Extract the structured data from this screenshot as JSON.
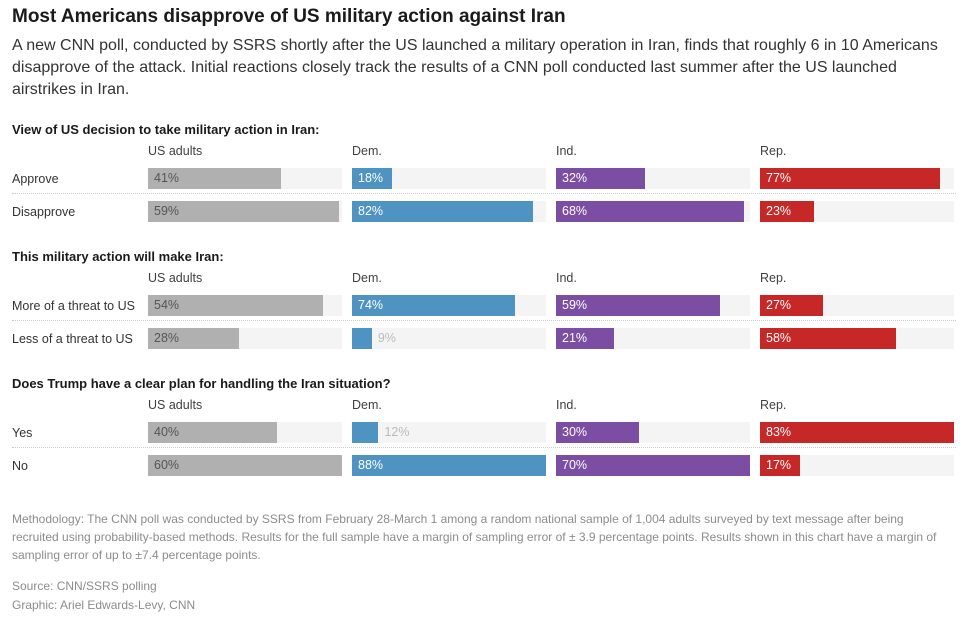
{
  "title": "Most Americans disapprove of US military action against Iran",
  "subtitle": "A new CNN poll, conducted by SSRS shortly after the US launched a military operation in Iran, finds that roughly 6 in 10 Americans disapprove of the attack. Initial reactions closely track the results of a CNN poll conducted last summer after the US launched airstrikes in Iran.",
  "methodology": "Methodology: The CNN poll was conducted by SSRS from February 28-March 1 among a random national sample of 1,004 adults surveyed by text message after being recruited using probability-based methods. Results for the full sample have a margin of sampling error of ± 3.9 percentage points. Results shown in this chart have a margin of sampling error of up to ±7.4 percentage points.",
  "source": "Source: CNN/SSRS polling",
  "graphic": "Graphic: Ariel Edwards-Levy, CNN",
  "chart_data": {
    "type": "bar",
    "groups": [
      "US adults",
      "Dem.",
      "Ind.",
      "Rep."
    ],
    "colors": [
      "#b0b0b0",
      "#4f93c3",
      "#7b4ea3",
      "#c62727"
    ],
    "unit": "%",
    "questions": [
      {
        "title": "View of US decision to take military action in Iran:",
        "rows": [
          {
            "label": "Approve",
            "values": [
              41,
              18,
              32,
              77
            ]
          },
          {
            "label": "Disapprove",
            "values": [
              59,
              82,
              68,
              23
            ]
          }
        ]
      },
      {
        "title": "This military action will make Iran:",
        "rows": [
          {
            "label": "More of a threat to US",
            "values": [
              54,
              74,
              59,
              27
            ]
          },
          {
            "label": "Less of a threat to US",
            "values": [
              28,
              9,
              21,
              58
            ]
          }
        ]
      },
      {
        "title": "Does Trump have a clear plan for handling the Iran situation?",
        "rows": [
          {
            "label": "Yes",
            "values": [
              40,
              12,
              30,
              83
            ]
          },
          {
            "label": "No",
            "values": [
              60,
              88,
              70,
              17
            ]
          }
        ]
      }
    ]
  }
}
